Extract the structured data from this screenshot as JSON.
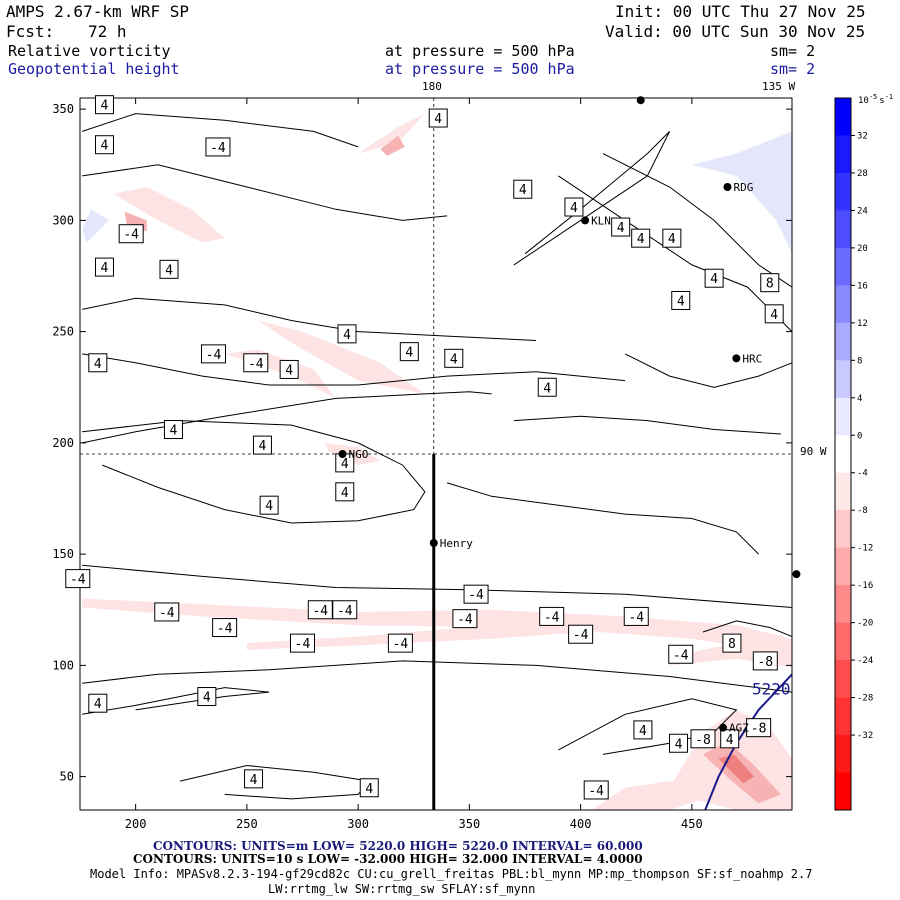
{
  "header": {
    "model": "AMPS 2.67-km WRF SP",
    "fcst_label": "Fcst:",
    "fcst_value": "72 h",
    "init": "Init: 00 UTC Thu 27 Nov 25",
    "valid": "Valid: 00 UTC Sun 30 Nov 25",
    "field1": "Relative vorticity",
    "field1_level": "at pressure =  500 hPa",
    "field1_sm": "sm= 2",
    "field2": "Geopotential height",
    "field2_level": "at pressure =  500 hPa",
    "field2_sm": "sm= 2"
  },
  "map_labels": {
    "lon_top_180": "180",
    "lon_top_135w": "135 W",
    "lon_right_90w": "90 W"
  },
  "stations": [
    {
      "name": "RDG",
      "x": 466,
      "y": 315
    },
    {
      "name": "KLN",
      "x": 402,
      "y": 300
    },
    {
      "name": "HRC",
      "x": 470,
      "y": 238
    },
    {
      "name": "NGO",
      "x": 293,
      "y": 195
    },
    {
      "name": "Henry",
      "x": 334,
      "y": 155
    },
    {
      "name": "AGZ",
      "x": 464,
      "y": 72
    }
  ],
  "unlabeled_stations": [
    {
      "x": 427,
      "y": 354
    },
    {
      "x": 497,
      "y": 141
    }
  ],
  "chart_data": {
    "type": "contour",
    "xlabel": "",
    "ylabel": "",
    "xlim": [
      175,
      495
    ],
    "ylim": [
      35,
      355
    ],
    "x_ticks": [
      200,
      250,
      300,
      350,
      400,
      450
    ],
    "y_ticks": [
      50,
      100,
      150,
      200,
      250,
      300,
      350
    ],
    "vertical_cross_section_line": {
      "x": 334,
      "y_from": 35,
      "y_to": 195
    },
    "height_contour_label": "5220",
    "height_contour": [
      [
        456,
        35
      ],
      [
        462,
        50
      ],
      [
        470,
        65
      ],
      [
        480,
        80
      ],
      [
        495,
        96
      ]
    ],
    "vorticity_labels": [
      {
        "text": "4",
        "x": 186,
        "y": 352
      },
      {
        "text": "4",
        "x": 186,
        "y": 334
      },
      {
        "text": "-4",
        "x": 237,
        "y": 333
      },
      {
        "text": "4",
        "x": 186,
        "y": 279
      },
      {
        "text": "4",
        "x": 215,
        "y": 278
      },
      {
        "text": "-4",
        "x": 198,
        "y": 294
      },
      {
        "text": "4",
        "x": 336,
        "y": 346
      },
      {
        "text": "4",
        "x": 374,
        "y": 314
      },
      {
        "text": "4",
        "x": 397,
        "y": 306
      },
      {
        "text": "4",
        "x": 418,
        "y": 297
      },
      {
        "text": "4",
        "x": 427,
        "y": 292
      },
      {
        "text": "4",
        "x": 441,
        "y": 292
      },
      {
        "text": "4",
        "x": 460,
        "y": 274
      },
      {
        "text": "4",
        "x": 445,
        "y": 264
      },
      {
        "text": "8",
        "x": 485,
        "y": 272
      },
      {
        "text": "4",
        "x": 487,
        "y": 258
      },
      {
        "text": "4",
        "x": 295,
        "y": 249
      },
      {
        "text": "-4",
        "x": 235,
        "y": 240
      },
      {
        "text": "-4",
        "x": 254,
        "y": 236
      },
      {
        "text": "4",
        "x": 269,
        "y": 233
      },
      {
        "text": "4",
        "x": 323,
        "y": 241
      },
      {
        "text": "4",
        "x": 343,
        "y": 238
      },
      {
        "text": "4",
        "x": 183,
        "y": 236
      },
      {
        "text": "4",
        "x": 385,
        "y": 225
      },
      {
        "text": "4",
        "x": 217,
        "y": 206
      },
      {
        "text": "4",
        "x": 257,
        "y": 199
      },
      {
        "text": "4",
        "x": 294,
        "y": 191
      },
      {
        "text": "4",
        "x": 294,
        "y": 178
      },
      {
        "text": "4",
        "x": 260,
        "y": 172
      },
      {
        "text": "-4",
        "x": 174,
        "y": 139
      },
      {
        "text": "-4",
        "x": 353,
        "y": 132
      },
      {
        "text": "-4",
        "x": 214,
        "y": 124
      },
      {
        "text": "-4",
        "x": 240,
        "y": 117
      },
      {
        "text": "-4",
        "x": 283,
        "y": 125
      },
      {
        "text": "-4",
        "x": 294,
        "y": 125
      },
      {
        "text": "-4",
        "x": 348,
        "y": 121
      },
      {
        "text": "-4",
        "x": 387,
        "y": 122
      },
      {
        "text": "-4",
        "x": 425,
        "y": 122
      },
      {
        "text": "-4",
        "x": 400,
        "y": 114
      },
      {
        "text": "-4",
        "x": 275,
        "y": 110
      },
      {
        "text": "-4",
        "x": 319,
        "y": 110
      },
      {
        "text": "-4",
        "x": 445,
        "y": 105
      },
      {
        "text": "8",
        "x": 468,
        "y": 110
      },
      {
        "text": "-8",
        "x": 483,
        "y": 102
      },
      {
        "text": "4",
        "x": 183,
        "y": 83
      },
      {
        "text": "4",
        "x": 232,
        "y": 86
      },
      {
        "text": "4",
        "x": 428,
        "y": 71
      },
      {
        "text": "4",
        "x": 444,
        "y": 65
      },
      {
        "text": "-8",
        "x": 455,
        "y": 67
      },
      {
        "text": "4",
        "x": 467,
        "y": 67
      },
      {
        "text": "-8",
        "x": 480,
        "y": 72
      },
      {
        "text": "4",
        "x": 253,
        "y": 49
      },
      {
        "text": "4",
        "x": 305,
        "y": 45
      },
      {
        "text": "-4",
        "x": 407,
        "y": 44
      }
    ],
    "colorbar": {
      "units_label": "10",
      "units_exp": "-5",
      "units_suffix": "s",
      "units_exp2": "-1",
      "levels": [
        32,
        28,
        24,
        20,
        16,
        12,
        8,
        4,
        0,
        -4,
        -8,
        -12,
        -16,
        -20,
        -24,
        -28,
        -32
      ],
      "colors": [
        "#0000ff",
        "#1a1aff",
        "#3333ff",
        "#4d4dff",
        "#6b6bff",
        "#8a8aff",
        "#aaaaff",
        "#c9c9ff",
        "#e8e8ff",
        "#ffffff",
        "#ffe8e8",
        "#ffc9c9",
        "#ffaaaa",
        "#ff8a8a",
        "#ff6b6b",
        "#ff4d4d",
        "#ff3333",
        "#ff1a1a",
        "#ff0000"
      ]
    }
  },
  "footer": {
    "line1": "CONTOURS:  UNITS=m  LOW=  5220.0          HIGH=  5220.0          INTERVAL=   60.000",
    "line2": "CONTOURS:  UNITS=10  s   LOW=  -32.000          HIGH=  32.000          INTERVAL=   4.0000",
    "line3": "Model Info: MPASv8.2.3-194-gf29cd82c CU:cu_grell_freitas PBL:bl_mynn MP:mp_thompson SF:sf_noahmp 2.7",
    "line4": "LW:rrtmg_lw SW:rrtmg_sw SFLAY:sf_mynn"
  }
}
